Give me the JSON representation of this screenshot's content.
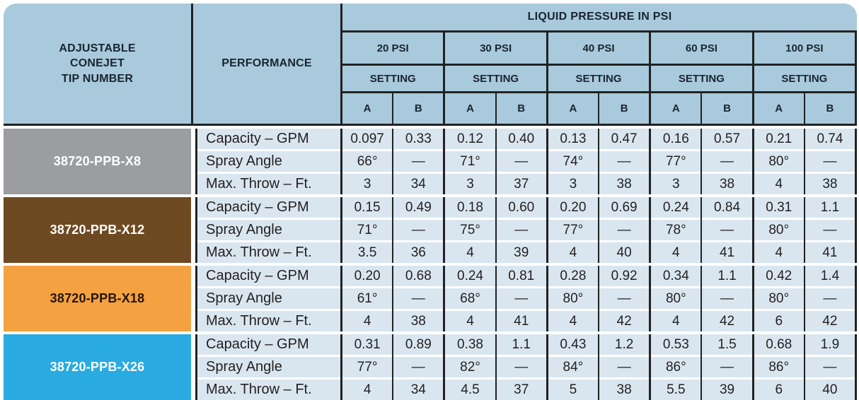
{
  "header": {
    "tip_column_title": "ADJUSTABLE\nCONEJET\nTIP NUMBER",
    "performance_column_title": "PERFORMANCE",
    "liquid_pressure_title": "LIQUID PRESSURE IN PSI",
    "pressure_labels": [
      "20 PSI",
      "30 PSI",
      "40 PSI",
      "60 PSI",
      "100 PSI"
    ],
    "setting_label": "SETTING",
    "column_labels": [
      "A",
      "B"
    ]
  },
  "performance_row_labels": [
    "Capacity – GPM",
    "Spray Angle",
    "Max. Throw – Ft."
  ],
  "tips": [
    {
      "tip_number": "38720-PPB-X8",
      "block_color": "#9B9DA0",
      "label_color": "#FFFFFF",
      "capacity_gpm": [
        "0.097",
        "0.33",
        "0.12",
        "0.40",
        "0.13",
        "0.47",
        "0.16",
        "0.57",
        "0.21",
        "0.74"
      ],
      "spray_angle": [
        "66°",
        "—",
        "71°",
        "—",
        "74°",
        "—",
        "77°",
        "—",
        "80°",
        "—"
      ],
      "max_throw_ft": [
        "3",
        "34",
        "3",
        "37",
        "3",
        "38",
        "3",
        "38",
        "4",
        "38"
      ]
    },
    {
      "tip_number": "38720-PPB-X12",
      "block_color": "#6E4A22",
      "label_color": "#FFFFFF",
      "capacity_gpm": [
        "0.15",
        "0.49",
        "0.18",
        "0.60",
        "0.20",
        "0.69",
        "0.24",
        "0.84",
        "0.31",
        "1.1"
      ],
      "spray_angle": [
        "71°",
        "—",
        "75°",
        "—",
        "77°",
        "—",
        "78°",
        "—",
        "80°",
        "—"
      ],
      "max_throw_ft": [
        "3.5",
        "36",
        "4",
        "39",
        "4",
        "40",
        "4",
        "41",
        "4",
        "41"
      ]
    },
    {
      "tip_number": "38720-PPB-X18",
      "block_color": "#F4A142",
      "label_color": "#231709",
      "capacity_gpm": [
        "0.20",
        "0.68",
        "0.24",
        "0.81",
        "0.28",
        "0.92",
        "0.34",
        "1.1",
        "0.42",
        "1.4"
      ],
      "spray_angle": [
        "61°",
        "—",
        "68°",
        "—",
        "80°",
        "—",
        "80°",
        "—",
        "80°",
        "—"
      ],
      "max_throw_ft": [
        "4",
        "38",
        "4",
        "41",
        "4",
        "42",
        "4",
        "42",
        "6",
        "42"
      ]
    },
    {
      "tip_number": "38720-PPB-X26",
      "block_color": "#29ABE2",
      "label_color": "#FFFFFF",
      "capacity_gpm": [
        "0.31",
        "0.89",
        "0.38",
        "1.1",
        "0.43",
        "1.2",
        "0.53",
        "1.5",
        "0.68",
        "1.9"
      ],
      "spray_angle": [
        "77°",
        "—",
        "82°",
        "—",
        "84°",
        "—",
        "86°",
        "—",
        "86°",
        "—"
      ],
      "max_throw_ft": [
        "4",
        "34",
        "4.5",
        "37",
        "5",
        "38",
        "5.5",
        "39",
        "6",
        "40"
      ]
    }
  ],
  "colors": {
    "header_bg": "#A8CADC",
    "row_bg": "#D9E6F0",
    "line": "#222222",
    "header_text": "#1B2430",
    "body_text": "#231F20",
    "page_bg": "#FFFFFF"
  }
}
